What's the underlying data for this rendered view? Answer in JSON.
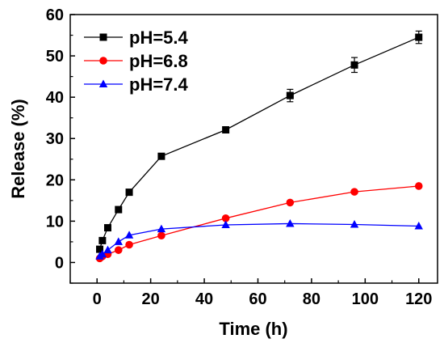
{
  "chart_data": {
    "type": "line",
    "title": "",
    "xlabel": "Time (h)",
    "ylabel": "Release (%)",
    "xlim": [
      -10,
      127
    ],
    "ylim": [
      -5,
      60
    ],
    "xticks": [
      0,
      20,
      40,
      60,
      80,
      100,
      120
    ],
    "yticks": [
      0,
      10,
      20,
      30,
      40,
      50,
      60
    ],
    "grid": false,
    "legend_position": "top-left",
    "series": [
      {
        "name": "pH=5.4",
        "color": "#000000",
        "marker": "square",
        "x": [
          1,
          2,
          4,
          8,
          12,
          24,
          48,
          72,
          96,
          120
        ],
        "y": [
          3.2,
          5.3,
          8.4,
          12.8,
          17.0,
          25.7,
          32.1,
          40.4,
          47.8,
          54.5
        ],
        "err": [
          0,
          0,
          0,
          0,
          0,
          0,
          0,
          1.5,
          1.8,
          1.5
        ]
      },
      {
        "name": "pH=6.8",
        "color": "#ff0000",
        "marker": "circle",
        "x": [
          1,
          2,
          4,
          8,
          12,
          24,
          48,
          72,
          96,
          120
        ],
        "y": [
          1.0,
          1.5,
          2.0,
          3.0,
          4.3,
          6.5,
          10.7,
          14.5,
          17.1,
          18.5
        ],
        "err": [
          0,
          0,
          0,
          0,
          0,
          0,
          0,
          0,
          0,
          0
        ]
      },
      {
        "name": "pH=7.4",
        "color": "#0000ff",
        "marker": "triangle",
        "x": [
          1,
          2,
          4,
          8,
          12,
          24,
          48,
          72,
          96,
          120
        ],
        "y": [
          1.5,
          2.0,
          3.0,
          5.0,
          6.6,
          8.1,
          9.1,
          9.4,
          9.2,
          8.8
        ],
        "err": [
          0,
          0,
          0,
          0,
          0,
          0,
          0,
          0,
          0,
          0
        ]
      }
    ]
  }
}
